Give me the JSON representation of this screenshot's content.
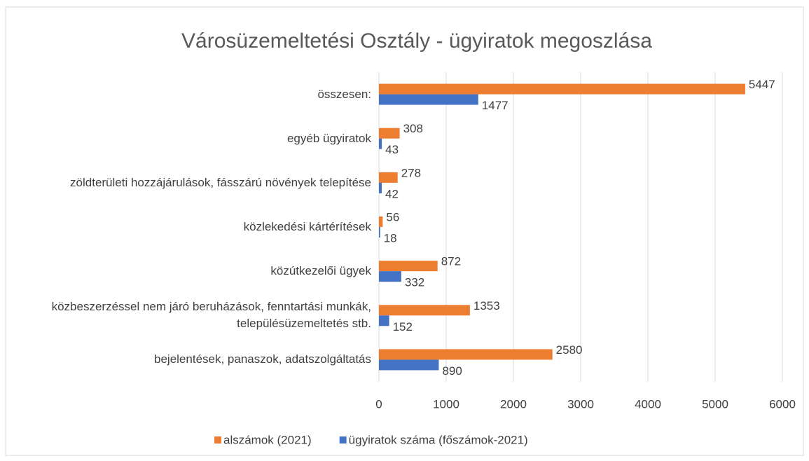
{
  "chart_data": {
    "type": "bar",
    "orientation": "horizontal",
    "title": "Városüzemeltetési Osztály - ügyiratok megoszlása",
    "categories": [
      "összesen:",
      "egyéb ügyiratok",
      "zöldterületi hozzájárulások, fásszárú növények telepítése",
      "közlekedési kártérítések",
      "közútkezelői ügyek",
      "közbeszerzéssel nem járó beruházások, fenntartási munkák, településüzemeltetés stb.",
      "bejelentések, panaszok, adatszolgáltatás"
    ],
    "series": [
      {
        "name": "alszámok (2021)",
        "color": "#ed7d31",
        "values": [
          5447,
          308,
          278,
          56,
          872,
          1353,
          2580
        ]
      },
      {
        "name": "ügyiratok száma (főszámok-2021)",
        "color": "#4472c4",
        "values": [
          1477,
          43,
          42,
          18,
          332,
          152,
          890
        ]
      }
    ],
    "xlim": [
      0,
      6000
    ],
    "xticks": [
      0,
      1000,
      2000,
      3000,
      4000,
      5000,
      6000
    ],
    "grid": true,
    "legend": "bottom"
  }
}
